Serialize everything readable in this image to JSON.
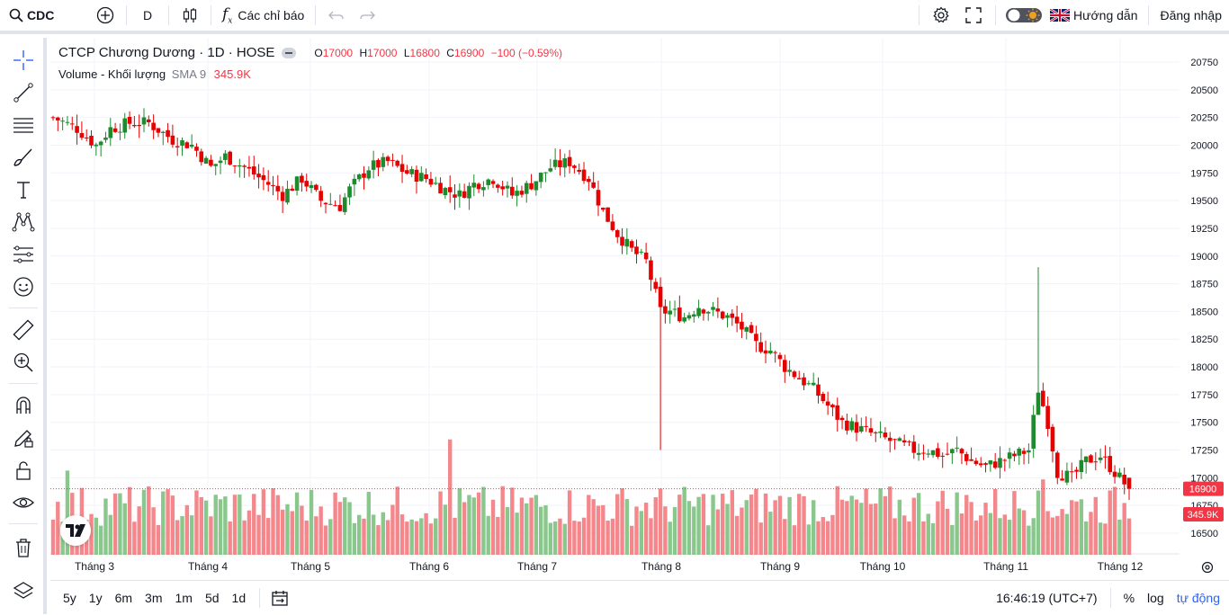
{
  "header": {
    "symbol": "CDC",
    "interval": "D",
    "indicators_label": "Các chỉ báo",
    "guide_label": "Hướng dẫn",
    "login_label": "Đăng nhập"
  },
  "legend": {
    "name": "CTCP Chương Dương · 1D · HOSE",
    "o_label": "O",
    "o": "17000",
    "h_label": "H",
    "h": "17000",
    "l_label": "L",
    "l": "16800",
    "c_label": "C",
    "c": "16900",
    "change": "−100 (−0.59%)",
    "volume_label": "Volume - Khối lượng",
    "sma_label": "SMA 9",
    "volume_value": "345.9K"
  },
  "bottom": {
    "timeframes": [
      "5y",
      "1y",
      "6m",
      "3m",
      "1m",
      "5d",
      "1d"
    ],
    "clock": "16:46:19 (UTC+7)",
    "percent_label": "%",
    "log_label": "log",
    "auto_label": "tự động"
  },
  "colors": {
    "up": "#22ab94",
    "down": "#f7525f",
    "up_candle": "#1e8a2e",
    "down_candle": "#e60000",
    "vol_up": "#89c78c",
    "vol_down": "#f4878b",
    "price_badge": "#f23645"
  },
  "chart_data": {
    "type": "candlestick",
    "y_axis_ticks": [
      20750,
      20500,
      20250,
      20000,
      19750,
      19500,
      19250,
      19000,
      18750,
      18500,
      18250,
      18000,
      17750,
      17500,
      17250,
      17000,
      16750,
      16500
    ],
    "ylim": [
      16300,
      20900
    ],
    "x_axis_labels": [
      "Tháng 3",
      "Tháng 4",
      "Tháng 5",
      "Tháng 6",
      "Tháng 7",
      "Tháng 8",
      "Tháng 9",
      "Tháng 10",
      "Tháng 11",
      "Tháng 12"
    ],
    "last_price_label": "16900",
    "last_volume_label": "345.9K",
    "price_path": [
      [
        0,
        20250
      ],
      [
        5,
        20150
      ],
      [
        9,
        20000
      ],
      [
        12,
        20150
      ],
      [
        16,
        20200
      ],
      [
        20,
        20200
      ],
      [
        25,
        20050
      ],
      [
        29,
        20000
      ],
      [
        33,
        19800
      ],
      [
        36,
        19900
      ],
      [
        40,
        19800
      ],
      [
        45,
        19650
      ],
      [
        48,
        19550
      ],
      [
        52,
        19700
      ],
      [
        56,
        19500
      ],
      [
        60,
        19450
      ],
      [
        62,
        19600
      ],
      [
        66,
        19800
      ],
      [
        70,
        19850
      ],
      [
        74,
        19750
      ],
      [
        78,
        19700
      ],
      [
        82,
        19600
      ],
      [
        85,
        19550
      ],
      [
        88,
        19650
      ],
      [
        92,
        19700
      ],
      [
        96,
        19550
      ],
      [
        100,
        19650
      ],
      [
        104,
        19800
      ],
      [
        108,
        19850
      ],
      [
        112,
        19700
      ],
      [
        115,
        19400
      ],
      [
        118,
        19200
      ],
      [
        121,
        19050
      ],
      [
        124,
        18950
      ],
      [
        127,
        18500
      ],
      [
        129,
        18500
      ],
      [
        132,
        18450
      ],
      [
        135,
        18550
      ],
      [
        138,
        18500
      ],
      [
        141,
        18450
      ],
      [
        144,
        18350
      ],
      [
        147,
        18200
      ],
      [
        150,
        18150
      ],
      [
        153,
        18000
      ],
      [
        156,
        17900
      ],
      [
        159,
        17800
      ],
      [
        162,
        17650
      ],
      [
        165,
        17500
      ],
      [
        168,
        17450
      ],
      [
        171,
        17400
      ],
      [
        174,
        17350
      ],
      [
        177,
        17300
      ],
      [
        180,
        17250
      ],
      [
        183,
        17250
      ],
      [
        186,
        17200
      ],
      [
        189,
        17250
      ],
      [
        192,
        17150
      ],
      [
        195,
        17100
      ],
      [
        198,
        17150
      ],
      [
        201,
        17200
      ],
      [
        204,
        17250
      ],
      [
        206,
        17800
      ],
      [
        208,
        17500
      ],
      [
        210,
        17050
      ],
      [
        213,
        17000
      ],
      [
        216,
        17150
      ],
      [
        219,
        17200
      ],
      [
        222,
        17050
      ],
      [
        225,
        16900
      ]
    ]
  }
}
